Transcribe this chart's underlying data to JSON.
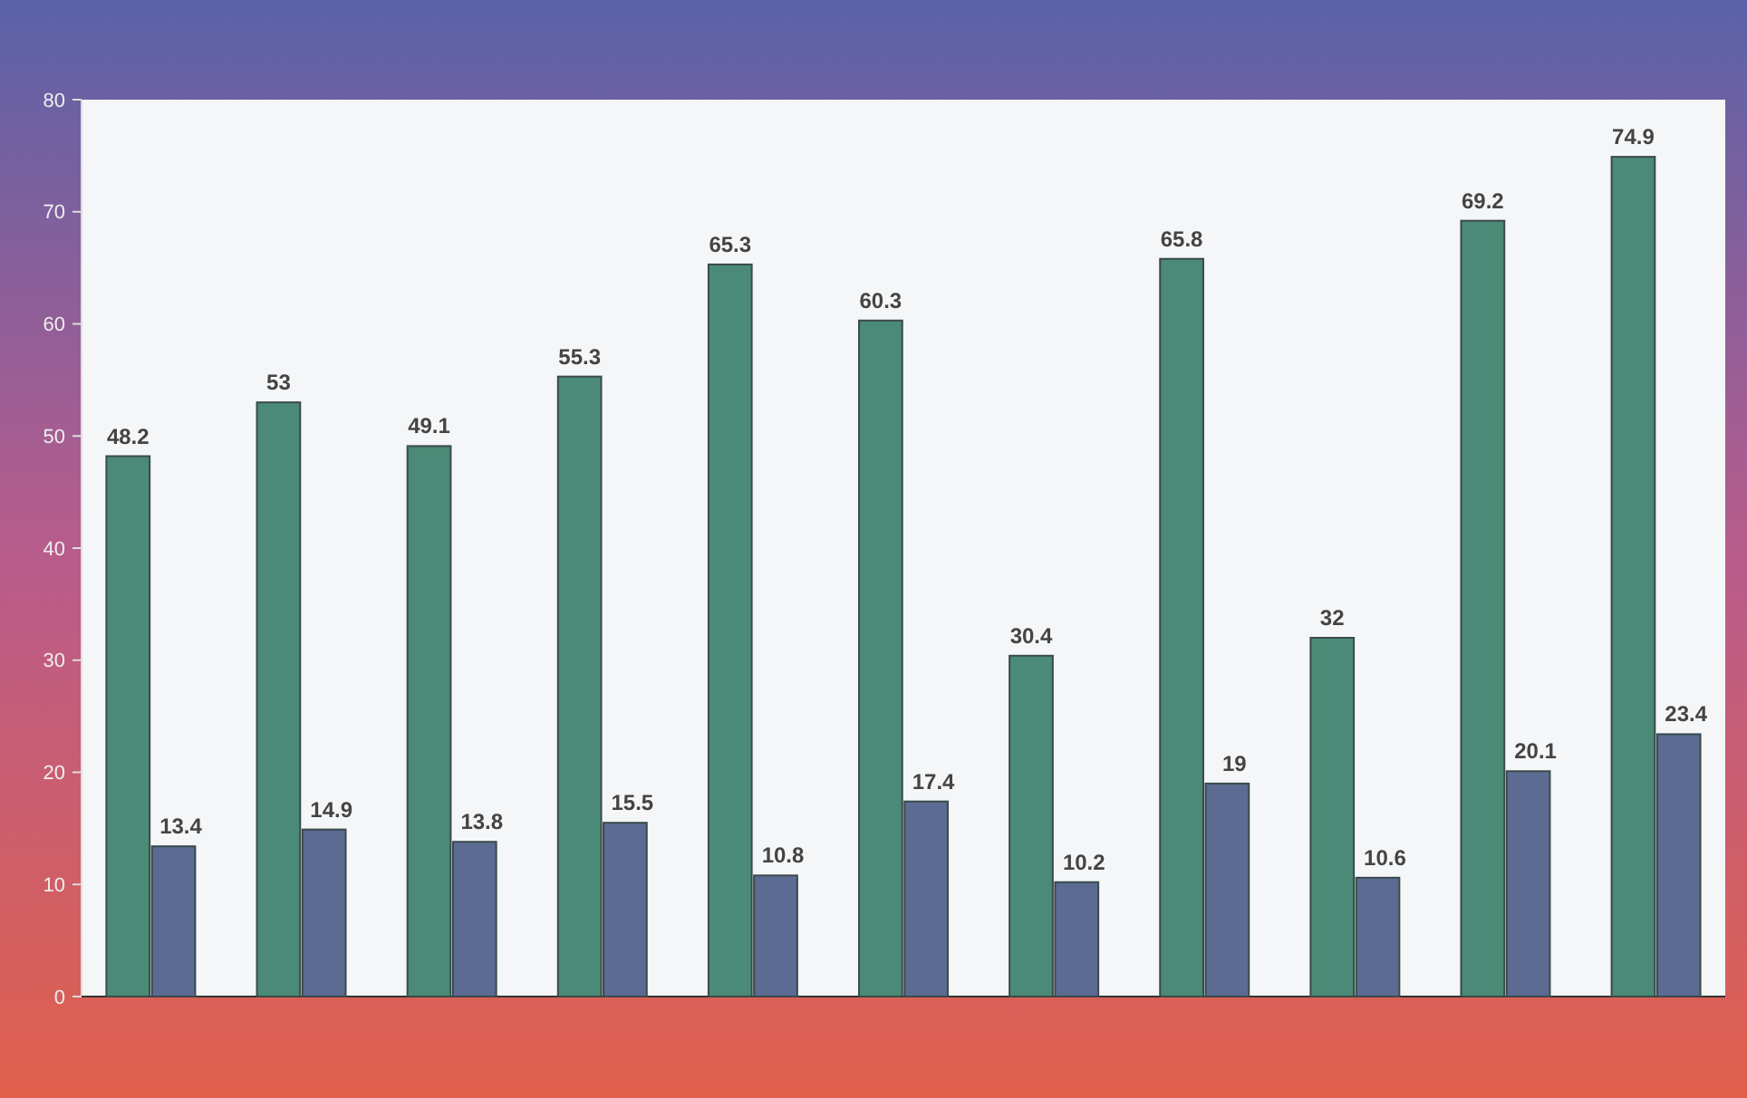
{
  "chart_data": {
    "type": "bar",
    "categories": [
      null,
      null,
      null,
      null,
      null,
      null,
      null,
      null,
      null,
      null,
      null
    ],
    "series": [
      {
        "color": "#4b8a76",
        "values": [
          48.2,
          53,
          49.1,
          55.3,
          65.3,
          60.3,
          30.4,
          65.8,
          32,
          69.2,
          74.9
        ]
      },
      {
        "color": "#5b6b92",
        "values": [
          13.4,
          14.9,
          13.8,
          15.5,
          10.8,
          17.4,
          10.2,
          19,
          10.6,
          20.1,
          23.4
        ]
      }
    ],
    "ylim": [
      0,
      80
    ],
    "yticks": [
      0,
      10,
      20,
      30,
      40,
      50,
      60,
      70,
      80
    ],
    "data_labels": true,
    "grid": false
  }
}
